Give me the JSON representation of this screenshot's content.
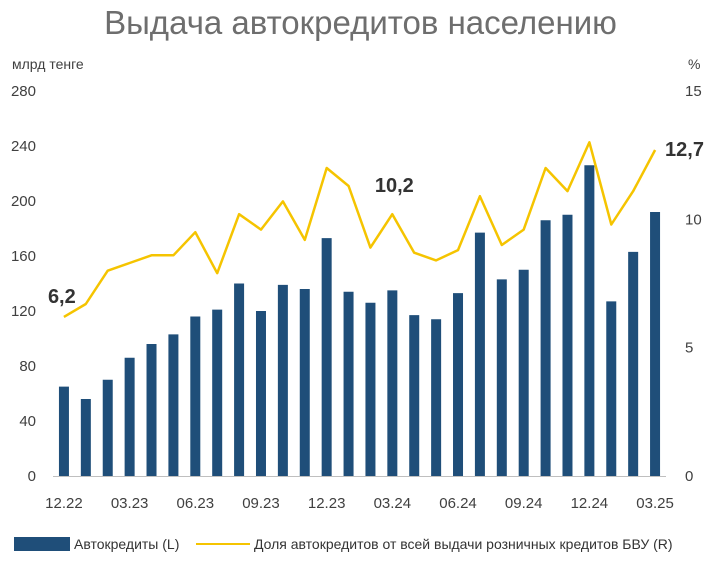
{
  "chart_data": {
    "type": "bar",
    "title": "Выдача автокредитов населению",
    "ylabel_left": "млрд тенге",
    "ylabel_right": "%",
    "ylim_left": [
      0,
      280
    ],
    "ylim_right": [
      0,
      15
    ],
    "yticks_left": [
      "0",
      "40",
      "80",
      "120",
      "160",
      "200",
      "240",
      "280"
    ],
    "yticks_right": [
      "0",
      "5",
      "10",
      "15"
    ],
    "x_tick_labels": [
      "12.22",
      "03.23",
      "06.23",
      "09.23",
      "12.23",
      "03.24",
      "06.24",
      "09.24",
      "12.24",
      "03.25"
    ],
    "x_tick_positions": [
      0,
      3,
      6,
      9,
      12,
      15,
      18,
      21,
      24,
      27
    ],
    "categories": [
      "12.22",
      "01.23",
      "02.23",
      "03.23",
      "04.23",
      "05.23",
      "06.23",
      "07.23",
      "08.23",
      "09.23",
      "10.23",
      "11.23",
      "12.23",
      "01.24",
      "02.24",
      "03.24",
      "04.24",
      "05.24",
      "06.24",
      "07.24",
      "08.24",
      "09.24",
      "10.24",
      "11.24",
      "12.24",
      "01.25",
      "02.25",
      "03.25"
    ],
    "series": [
      {
        "name": "Автокредиты (L)",
        "type": "bar",
        "axis": "left",
        "color": "#1f4e79",
        "values": [
          65,
          56,
          70,
          86,
          96,
          103,
          116,
          121,
          140,
          120,
          139,
          136,
          173,
          134,
          126,
          135,
          117,
          114,
          133,
          177,
          143,
          150,
          186,
          190,
          226,
          127,
          163,
          192
        ]
      },
      {
        "name": "Доля автокредитов от всей выдачи розничных кредитов БВУ (R)",
        "type": "line",
        "axis": "right",
        "color": "#f5c400",
        "values": [
          6.2,
          6.7,
          8.0,
          8.3,
          8.6,
          8.6,
          9.5,
          7.9,
          10.2,
          9.6,
          10.7,
          9.2,
          12.0,
          11.3,
          8.9,
          10.2,
          8.7,
          8.4,
          8.8,
          10.9,
          9.0,
          9.6,
          12.0,
          11.1,
          13.0,
          9.8,
          11.1,
          12.7
        ]
      }
    ],
    "annotations": [
      {
        "text": "6,2",
        "index": 0
      },
      {
        "text": "10,2",
        "index": 15
      },
      {
        "text": "12,7",
        "index": 27
      }
    ],
    "legend_position": "bottom",
    "grid": false
  }
}
